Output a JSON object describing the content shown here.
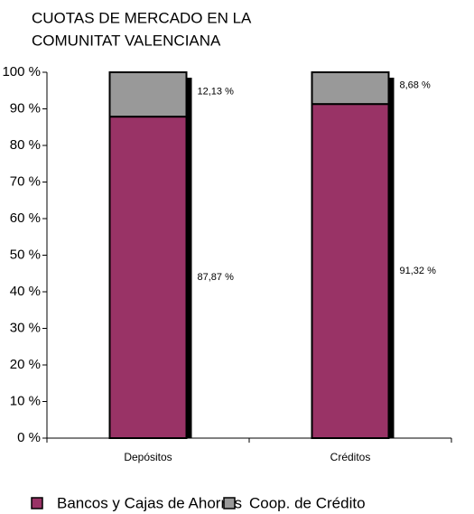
{
  "chart_data": {
    "type": "stacked_bar",
    "title": [
      "CUOTAS DE MERCADO EN LA",
      "COMUNITAT VALENCIANA"
    ],
    "categories": [
      "Depósitos",
      "Créditos"
    ],
    "series": [
      {
        "name": "Bancos y Cajas de Ahorros",
        "color": "#993366",
        "values": [
          87.87,
          91.32
        ],
        "value_labels": [
          "87,87 %",
          "91,32 %"
        ]
      },
      {
        "name": "Coop. de Crédito",
        "color": "#999999",
        "values": [
          12.13,
          8.68
        ],
        "value_labels": [
          "12,13 %",
          "8,68 %"
        ]
      }
    ],
    "ylim": [
      0,
      100
    ],
    "yticks": [
      {
        "value": 0,
        "label": "0 %"
      },
      {
        "value": 10,
        "label": "10 %"
      },
      {
        "value": 20,
        "label": "20 %"
      },
      {
        "value": 30,
        "label": "30 %"
      },
      {
        "value": 40,
        "label": "40 %"
      },
      {
        "value": 50,
        "label": "50 %"
      },
      {
        "value": 60,
        "label": "60 %"
      },
      {
        "value": 70,
        "label": "70 %"
      },
      {
        "value": 80,
        "label": "80 %"
      },
      {
        "value": 90,
        "label": "90 %"
      },
      {
        "value": 100,
        "label": "100 %"
      }
    ],
    "legend": "bottom"
  }
}
